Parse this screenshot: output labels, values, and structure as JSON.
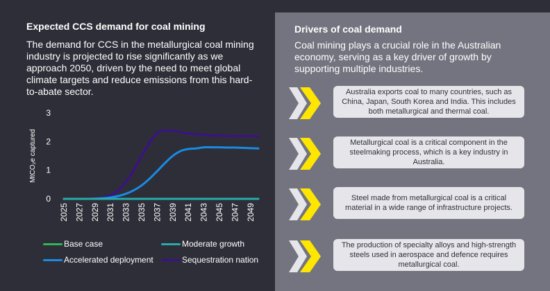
{
  "left": {
    "title": "Expected CCS demand for coal mining",
    "body": "The demand for CCS in the metallurgical coal mining industry is projected to rise significantly as we approach 2050, driven by the need to meet global climate targets and reduce emissions from this hard-to-abate sector."
  },
  "right": {
    "title": "Drivers of coal demand",
    "body": "Coal mining plays a crucial role in the Australian economy, serving as a key driver of growth by supporting multiple industries.",
    "drivers": [
      {
        "text": "Australia exports coal to many countries, such as China, Japan, South Korea and India. This includes both metallurgical and thermal coal.",
        "icon": "chevron-right-icon"
      },
      {
        "text": "Metallurgical coal is a critical component in the steelmaking process, which is a key industry in Australia.",
        "icon": "chevron-right-icon"
      },
      {
        "text": "Steel made from metallurgical coal is a critical material in a wide range of infrastructure projects.",
        "icon": "chevron-right-icon"
      },
      {
        "text": "The production of specialty alloys and high-strength steels used in aerospace and defence requires metallurgical coal.",
        "icon": "chevron-right-icon"
      }
    ]
  },
  "colors": {
    "background_dark": "#2e2e38",
    "panel_grey": "#747480",
    "accent_yellow": "#ffe600",
    "box_light": "#e6e6ea"
  },
  "chart_data": {
    "type": "line",
    "ylabel": "MtCO₂e captured",
    "ylim": [
      0,
      3
    ],
    "yticks": [
      0,
      1,
      2,
      3
    ],
    "xlim": [
      2025,
      2050
    ],
    "xticks": [
      "2025",
      "2027",
      "2029",
      "2031",
      "2033",
      "2035",
      "2037",
      "2039",
      "2041",
      "2043",
      "2045",
      "2047",
      "2049"
    ],
    "grid": false,
    "legend_position": "bottom",
    "series": [
      {
        "name": "Base case",
        "color": "#2db757",
        "x": [
          2025,
          2050
        ],
        "y": [
          0,
          0
        ]
      },
      {
        "name": "Moderate growth",
        "color": "#27acaa",
        "x": [
          2025,
          2050
        ],
        "y": [
          0,
          0
        ]
      },
      {
        "name": "Accelerated deployment",
        "color": "#188ce5",
        "x": [
          2025,
          2028,
          2030,
          2031,
          2032,
          2033,
          2034,
          2035,
          2036,
          2037,
          2038,
          2039,
          2040,
          2041,
          2042,
          2043,
          2044,
          2045,
          2046,
          2047,
          2048,
          2049,
          2050
        ],
        "y": [
          0,
          0,
          0.02,
          0.05,
          0.1,
          0.18,
          0.3,
          0.47,
          0.7,
          0.97,
          1.25,
          1.5,
          1.67,
          1.74,
          1.76,
          1.8,
          1.8,
          1.8,
          1.79,
          1.79,
          1.78,
          1.77,
          1.76
        ]
      },
      {
        "name": "Sequestration nation",
        "color": "#3d108a",
        "x": [
          2025,
          2028,
          2029,
          2030,
          2031,
          2032,
          2033,
          2034,
          2035,
          2036,
          2037,
          2038,
          2039,
          2040,
          2041,
          2042,
          2043,
          2044,
          2045,
          2046,
          2047,
          2048,
          2049,
          2050
        ],
        "y": [
          0,
          0,
          0.02,
          0.05,
          0.12,
          0.3,
          0.6,
          1.0,
          1.5,
          1.95,
          2.3,
          2.38,
          2.38,
          2.33,
          2.28,
          2.26,
          2.24,
          2.22,
          2.21,
          2.2,
          2.2,
          2.19,
          2.19,
          2.19
        ]
      }
    ]
  }
}
